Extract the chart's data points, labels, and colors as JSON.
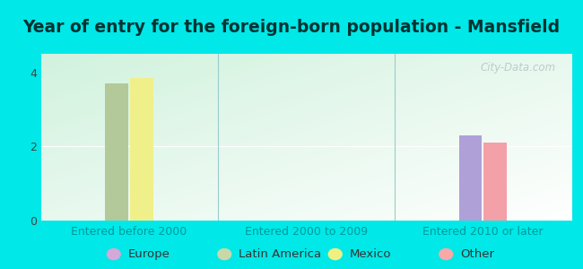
{
  "title": "Year of entry for the foreign-born population - Mansfield",
  "groups": [
    "Entered before 2000",
    "Entered 2000 to 2009",
    "Entered 2010 or later"
  ],
  "series": [
    "Europe",
    "Latin America",
    "Mexico",
    "Other"
  ],
  "series_colors": [
    "#b0a0d8",
    "#b3c99a",
    "#f0f08a",
    "#f4a0a8"
  ],
  "legend_colors": [
    "#d4a8d8",
    "#c8d8a8",
    "#f0f080",
    "#f8a8a8"
  ],
  "values": {
    "Europe": [
      0,
      0,
      2.3
    ],
    "Latin America": [
      3.7,
      0,
      0
    ],
    "Mexico": [
      3.85,
      0,
      0
    ],
    "Other": [
      0,
      0,
      2.1
    ]
  },
  "ylim": [
    0,
    4.5
  ],
  "yticks": [
    0,
    2,
    4
  ],
  "bar_width": 0.13,
  "background_color": "#00e8e8",
  "plot_bg_gradient_colors": [
    "#d8f0e0",
    "#ffffff"
  ],
  "title_color": "#003333",
  "title_fontsize": 13.5,
  "tick_fontsize": 9,
  "legend_fontsize": 9.5,
  "xticklabel_color": "#009999",
  "watermark": "City-Data.com",
  "watermark_color": "#bbcccc"
}
